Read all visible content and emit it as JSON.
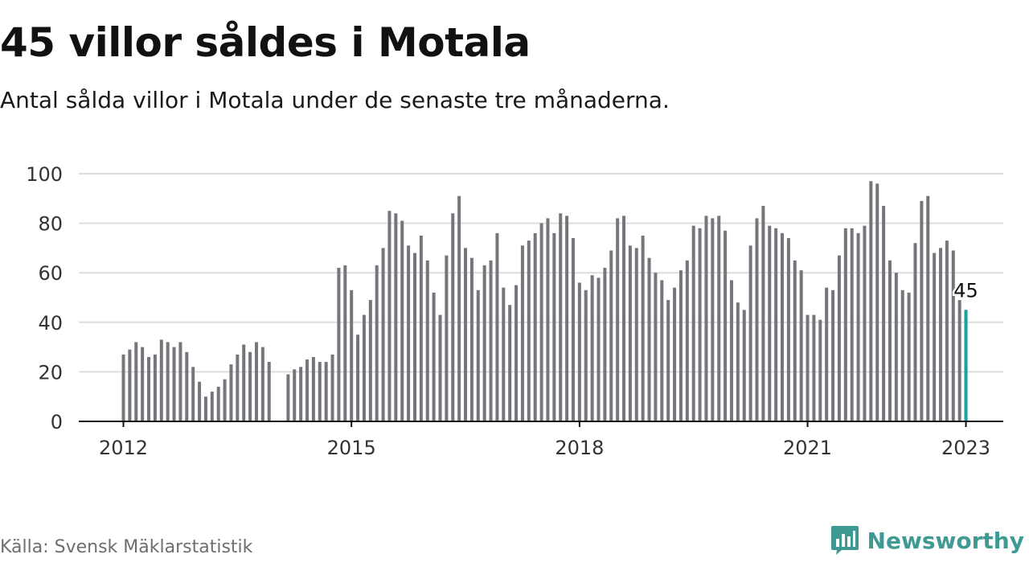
{
  "header": {
    "title": "45 villor såldes i Motala",
    "subtitle": "Antal sålda villor i Motala under de senaste tre månaderna."
  },
  "footer": {
    "source": "Källa: Svensk Mäklarstatistik",
    "brand": "Newsworthy"
  },
  "colors": {
    "bar": "#76757b",
    "highlight": "#1aa39a",
    "grid": "#dddddd",
    "axis": "#111111",
    "brand": "#3f9a93"
  },
  "icons": {
    "brand_logo": "bar-chart-speech-bubble-icon"
  },
  "chart_data": {
    "type": "bar",
    "title": "45 villor såldes i Motala",
    "ylim": [
      0,
      100
    ],
    "yticks": [
      0,
      20,
      40,
      60,
      80,
      100
    ],
    "xticks": [
      "2012",
      "2015",
      "2018",
      "2021",
      "2023"
    ],
    "grid": true,
    "legend": "none",
    "highlight_label": "45",
    "series": [
      {
        "start": "2012-01",
        "values": [
          27,
          29,
          32,
          30,
          26,
          27,
          33,
          32,
          30,
          32,
          28,
          22,
          16,
          10,
          12,
          14,
          17,
          23,
          27,
          31,
          28,
          32,
          30,
          24
        ]
      },
      {
        "start": "2014-03",
        "values": [
          19,
          21,
          22,
          25,
          26,
          24,
          24,
          27,
          62,
          63,
          53,
          35,
          43,
          49,
          63,
          70,
          85,
          84,
          81,
          71,
          68,
          75,
          65,
          52,
          43,
          67,
          84,
          91,
          70,
          66,
          53,
          63,
          65,
          76,
          54,
          47,
          55,
          71,
          73,
          76,
          80,
          82,
          76,
          84,
          83,
          74,
          56,
          53,
          59,
          58,
          62,
          69,
          82,
          83,
          71,
          70,
          75,
          66,
          60,
          57,
          49,
          54,
          61,
          65,
          79,
          78,
          83,
          82,
          83,
          77,
          57,
          48,
          45,
          71,
          82,
          87,
          79,
          78,
          76,
          74,
          65,
          61,
          43,
          43,
          41,
          54,
          53,
          67,
          78,
          78,
          76,
          79,
          97,
          96,
          87,
          65,
          60,
          53,
          52,
          72,
          89,
          91,
          68,
          70,
          73,
          69,
          49,
          45
        ]
      }
    ]
  }
}
